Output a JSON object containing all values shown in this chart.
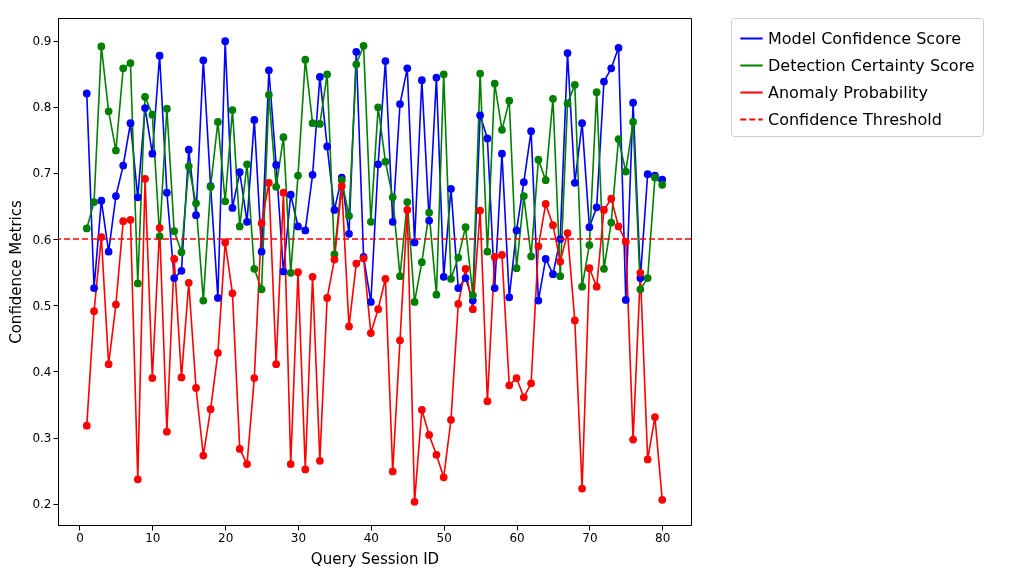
{
  "chart_data": {
    "type": "line",
    "xlabel": "Query Session ID",
    "ylabel": "Confidence Metrics",
    "x": [
      1,
      2,
      3,
      4,
      5,
      6,
      7,
      8,
      9,
      10,
      11,
      12,
      13,
      14,
      15,
      16,
      17,
      18,
      19,
      20,
      21,
      22,
      23,
      24,
      25,
      26,
      27,
      28,
      29,
      30,
      31,
      32,
      33,
      34,
      35,
      36,
      37,
      38,
      39,
      40,
      41,
      42,
      43,
      44,
      45,
      46,
      47,
      48,
      49,
      50,
      51,
      52,
      53,
      54,
      55,
      56,
      57,
      58,
      59,
      60,
      61,
      62,
      63,
      64,
      65,
      66,
      67,
      68,
      69,
      70,
      71,
      72,
      73,
      74,
      75,
      76,
      77,
      78,
      79,
      80
    ],
    "series": [
      {
        "name": "Model Confidence Score",
        "color": "#0000ff",
        "values": [
          0.82,
          0.526,
          0.658,
          0.581,
          0.665,
          0.711,
          0.775,
          0.663,
          0.798,
          0.729,
          0.877,
          0.67,
          0.541,
          0.552,
          0.735,
          0.636,
          0.87,
          0.68,
          0.511,
          0.899,
          0.647,
          0.701,
          0.626,
          0.78,
          0.581,
          0.855,
          0.712,
          0.551,
          0.667,
          0.619,
          0.613,
          0.697,
          0.845,
          0.74,
          0.644,
          0.693,
          0.608,
          0.883,
          0.573,
          0.505,
          0.713,
          0.869,
          0.626,
          0.804,
          0.858,
          0.595,
          0.84,
          0.628,
          0.844,
          0.543,
          0.676,
          0.526,
          0.541,
          0.507,
          0.787,
          0.752,
          0.526,
          0.729,
          0.512,
          0.613,
          0.686,
          0.763,
          0.507,
          0.57,
          0.547,
          0.6,
          0.881,
          0.685,
          0.775,
          0.618,
          0.648,
          0.838,
          0.858,
          0.889,
          0.508,
          0.806,
          0.541,
          0.698,
          0.696,
          0.69
        ]
      },
      {
        "name": "Detection Certainty Score",
        "color": "#008000",
        "values": [
          0.616,
          0.656,
          0.891,
          0.793,
          0.734,
          0.858,
          0.866,
          0.533,
          0.815,
          0.788,
          0.604,
          0.797,
          0.612,
          0.58,
          0.71,
          0.654,
          0.507,
          0.679,
          0.777,
          0.657,
          0.795,
          0.619,
          0.713,
          0.555,
          0.524,
          0.818,
          0.679,
          0.754,
          0.549,
          0.696,
          0.871,
          0.775,
          0.774,
          0.849,
          0.577,
          0.689,
          0.635,
          0.864,
          0.892,
          0.626,
          0.799,
          0.717,
          0.663,
          0.544,
          0.656,
          0.505,
          0.565,
          0.64,
          0.516,
          0.849,
          0.54,
          0.572,
          0.618,
          0.515,
          0.85,
          0.581,
          0.835,
          0.765,
          0.809,
          0.556,
          0.665,
          0.574,
          0.72,
          0.689,
          0.812,
          0.544,
          0.805,
          0.833,
          0.528,
          0.591,
          0.822,
          0.555,
          0.625,
          0.751,
          0.702,
          0.777,
          0.524,
          0.541,
          0.693,
          0.682
        ]
      },
      {
        "name": "Anomaly Probability",
        "color": "#ff0000",
        "values": [
          0.318,
          0.491,
          0.603,
          0.411,
          0.501,
          0.627,
          0.629,
          0.237,
          0.691,
          0.39,
          0.617,
          0.309,
          0.57,
          0.391,
          0.534,
          0.375,
          0.273,
          0.343,
          0.428,
          0.595,
          0.518,
          0.283,
          0.26,
          0.39,
          0.624,
          0.685,
          0.411,
          0.67,
          0.26,
          0.55,
          0.252,
          0.543,
          0.265,
          0.511,
          0.569,
          0.68,
          0.468,
          0.563,
          0.571,
          0.458,
          0.494,
          0.54,
          0.249,
          0.447,
          0.644,
          0.203,
          0.342,
          0.304,
          0.274,
          0.24,
          0.327,
          0.502,
          0.555,
          0.494,
          0.643,
          0.355,
          0.573,
          0.576,
          0.379,
          0.39,
          0.361,
          0.382,
          0.589,
          0.653,
          0.621,
          0.566,
          0.609,
          0.477,
          0.223,
          0.556,
          0.528,
          0.644,
          0.661,
          0.619,
          0.596,
          0.297,
          0.549,
          0.267,
          0.331,
          0.206
        ]
      }
    ],
    "ref_lines": [
      {
        "axis": "y",
        "value": 0.6,
        "label": "Confidence Threshold",
        "color": "#ff0000",
        "line_style": "dashed"
      }
    ],
    "xlim": [
      -2.95,
      83.95
    ],
    "xticks": [
      0,
      10,
      20,
      30,
      40,
      50,
      60,
      70,
      80
    ],
    "ylim": [
      0.168,
      0.934
    ],
    "yticks": [
      0.2,
      0.3,
      0.4,
      0.5,
      0.6,
      0.7,
      0.8,
      0.9
    ],
    "grid": false,
    "legend": "top right",
    "marker": "circle",
    "line_style": "solid"
  }
}
